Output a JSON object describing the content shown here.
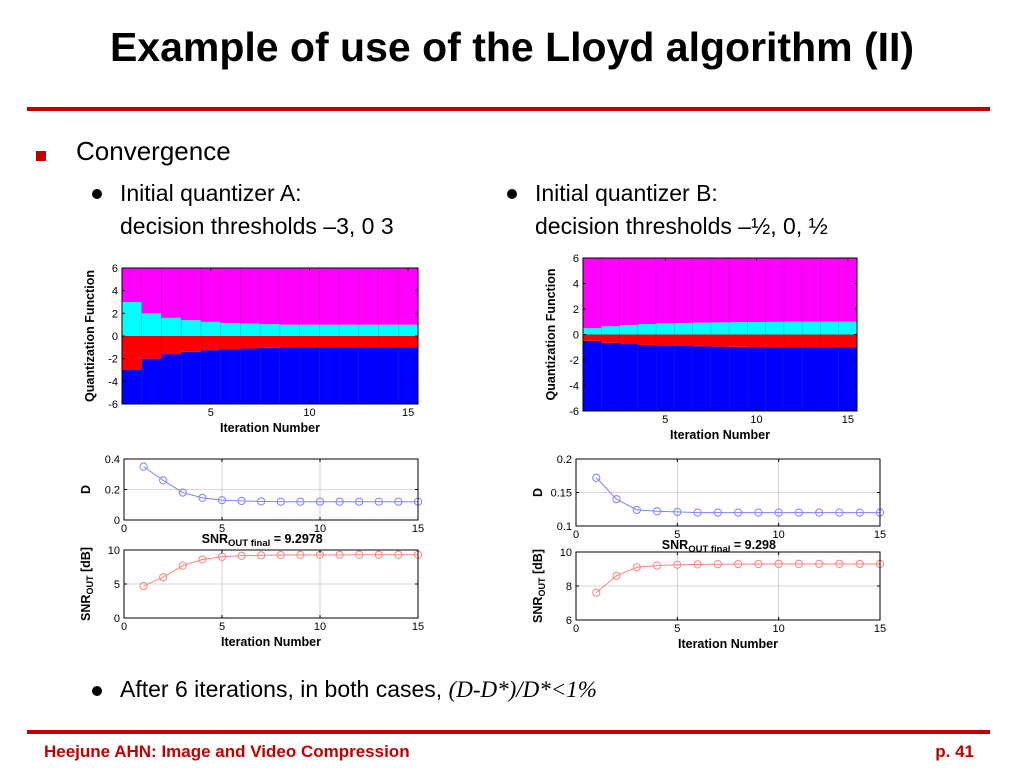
{
  "slide": {
    "title": "Example of use of the Lloyd algorithm (II)",
    "bullet1": "Convergence",
    "caseA": {
      "line1": "Initial quantizer A:",
      "line2": "decision thresholds –3, 0 3"
    },
    "caseB": {
      "line1": "Initial quantizer B:",
      "line2": "decision thresholds –½, 0, ½"
    },
    "bullet3_text": "After 6 iterations, in both cases,",
    "bullet3_formula": "(D-D*)/D*<1%",
    "footer_left": "Heejune AHN: Image and Video Compression",
    "footer_right": "p. 41"
  },
  "colors": {
    "accent": "#c00000",
    "magenta": "#ff00ff",
    "cyan": "#00ffff",
    "red": "#ff0000",
    "blue": "#0000ff",
    "d_curve": "#8080ff",
    "snr_curve": "#ff8080"
  },
  "chart_data": [
    {
      "id": "quantA",
      "type": "area",
      "title": "",
      "xlabel": "Iteration Number",
      "ylabel": "Quantization Function",
      "xlim": [
        0.5,
        15.5
      ],
      "ylim": [
        -6,
        6
      ],
      "xticks": [
        5,
        10,
        15
      ],
      "yticks": [
        6,
        4,
        2,
        0,
        -2,
        -4,
        -6
      ],
      "x": [
        1,
        2,
        3,
        4,
        5,
        6,
        7,
        8,
        9,
        10,
        11,
        12,
        13,
        14,
        15
      ],
      "bands": [
        {
          "name": "",
          "color": "#0000ff",
          "lower": [
            -6,
            -6,
            -6,
            -6,
            -6,
            -6,
            -6,
            -6,
            -6,
            -6,
            -6,
            -6,
            -6,
            -6,
            -6
          ],
          "upper": [
            -3.0,
            -2.0,
            -1.6,
            -1.4,
            -1.25,
            -1.15,
            -1.1,
            -1.05,
            -1.0,
            -1.0,
            -1.0,
            -1.0,
            -1.0,
            -1.0,
            -1.0
          ]
        },
        {
          "name": "",
          "color": "#ff0000",
          "lower": [
            -3.0,
            -2.0,
            -1.6,
            -1.4,
            -1.25,
            -1.15,
            -1.1,
            -1.05,
            -1.0,
            -1.0,
            -1.0,
            -1.0,
            -1.0,
            -1.0,
            -1.0
          ],
          "upper": [
            0,
            0,
            0,
            0,
            0,
            0,
            0,
            0,
            0,
            0,
            0,
            0,
            0,
            0,
            0
          ]
        },
        {
          "name": "",
          "color": "#00ffff",
          "lower": [
            0,
            0,
            0,
            0,
            0,
            0,
            0,
            0,
            0,
            0,
            0,
            0,
            0,
            0,
            0
          ],
          "upper": [
            3.0,
            2.0,
            1.6,
            1.4,
            1.25,
            1.15,
            1.1,
            1.05,
            1.0,
            1.0,
            1.0,
            1.0,
            1.0,
            1.0,
            1.0
          ]
        },
        {
          "name": "",
          "color": "#ff00ff",
          "lower": [
            3.0,
            2.0,
            1.6,
            1.4,
            1.25,
            1.15,
            1.1,
            1.05,
            1.0,
            1.0,
            1.0,
            1.0,
            1.0,
            1.0,
            1.0
          ],
          "upper": [
            6,
            6,
            6,
            6,
            6,
            6,
            6,
            6,
            6,
            6,
            6,
            6,
            6,
            6,
            6
          ]
        }
      ]
    },
    {
      "id": "quantB",
      "type": "area",
      "title": "",
      "xlabel": "Iteration Number",
      "ylabel": "Quantization Function",
      "xlim": [
        0.5,
        15.5
      ],
      "ylim": [
        -6,
        6
      ],
      "xticks": [
        5,
        10,
        15
      ],
      "yticks": [
        6,
        4,
        2,
        0,
        -2,
        -4,
        -6
      ],
      "x": [
        1,
        2,
        3,
        4,
        5,
        6,
        7,
        8,
        9,
        10,
        11,
        12,
        13,
        14,
        15
      ],
      "bands": [
        {
          "name": "",
          "color": "#0000ff",
          "lower": [
            -6,
            -6,
            -6,
            -6,
            -6,
            -6,
            -6,
            -6,
            -6,
            -6,
            -6,
            -6,
            -6,
            -6,
            -6
          ],
          "upper": [
            -0.5,
            -0.65,
            -0.75,
            -0.82,
            -0.87,
            -0.9,
            -0.93,
            -0.95,
            -0.97,
            -0.98,
            -0.99,
            -1.0,
            -1.0,
            -1.0,
            -1.0
          ]
        },
        {
          "name": "",
          "color": "#ff0000",
          "lower": [
            -0.5,
            -0.65,
            -0.75,
            -0.82,
            -0.87,
            -0.9,
            -0.93,
            -0.95,
            -0.97,
            -0.98,
            -0.99,
            -1.0,
            -1.0,
            -1.0,
            -1.0
          ],
          "upper": [
            0,
            0,
            0,
            0,
            0,
            0,
            0,
            0,
            0,
            0,
            0,
            0,
            0,
            0,
            0
          ]
        },
        {
          "name": "",
          "color": "#00ffff",
          "lower": [
            0,
            0,
            0,
            0,
            0,
            0,
            0,
            0,
            0,
            0,
            0,
            0,
            0,
            0,
            0
          ],
          "upper": [
            0.5,
            0.65,
            0.75,
            0.82,
            0.87,
            0.9,
            0.93,
            0.95,
            0.97,
            0.98,
            0.99,
            1.0,
            1.0,
            1.0,
            1.0
          ]
        },
        {
          "name": "",
          "color": "#ff00ff",
          "lower": [
            0.5,
            0.65,
            0.75,
            0.82,
            0.87,
            0.9,
            0.93,
            0.95,
            0.97,
            0.98,
            0.99,
            1.0,
            1.0,
            1.0,
            1.0
          ],
          "upper": [
            6,
            6,
            6,
            6,
            6,
            6,
            6,
            6,
            6,
            6,
            6,
            6,
            6,
            6,
            6
          ]
        }
      ]
    },
    {
      "id": "distA",
      "type": "line",
      "title": "",
      "xlabel": "",
      "ylabel": "D",
      "xlim": [
        0,
        15
      ],
      "ylim": [
        0,
        0.4
      ],
      "xticks": [
        0,
        5,
        10,
        15
      ],
      "yticks": [
        0,
        0.2,
        0.4
      ],
      "grid": true,
      "annotation": {
        "text": "SNR",
        "sub": "OUT final",
        "value": " = 9.2978"
      },
      "series": [
        {
          "name": "",
          "color": "#8080ff",
          "x": [
            1,
            2,
            3,
            4,
            5,
            6,
            7,
            8,
            9,
            10,
            11,
            12,
            13,
            14,
            15
          ],
          "y": [
            0.35,
            0.26,
            0.18,
            0.145,
            0.13,
            0.125,
            0.122,
            0.12,
            0.12,
            0.12,
            0.12,
            0.12,
            0.12,
            0.12,
            0.12
          ]
        }
      ]
    },
    {
      "id": "snrA",
      "type": "line",
      "title": "",
      "xlabel": "Iteration Number",
      "ylabel": "SNR",
      "ylabel_sub": "OUT",
      "ylabel_suffix": " [dB]",
      "xlim": [
        0,
        15
      ],
      "ylim": [
        0,
        10
      ],
      "xticks": [
        0,
        5,
        10,
        15
      ],
      "yticks": [
        0,
        5,
        10
      ],
      "grid": true,
      "series": [
        {
          "name": "",
          "color": "#ff8080",
          "x": [
            1,
            2,
            3,
            4,
            5,
            6,
            7,
            8,
            9,
            10,
            11,
            12,
            13,
            14,
            15
          ],
          "y": [
            4.7,
            6.0,
            7.7,
            8.6,
            9.0,
            9.15,
            9.22,
            9.26,
            9.28,
            9.29,
            9.29,
            9.3,
            9.3,
            9.3,
            9.3
          ]
        }
      ]
    },
    {
      "id": "distB",
      "type": "line",
      "title": "",
      "xlabel": "",
      "ylabel": "D",
      "xlim": [
        0,
        15
      ],
      "ylim": [
        0.1,
        0.2
      ],
      "xticks": [
        0,
        5,
        10,
        15
      ],
      "yticks": [
        0.1,
        0.15,
        0.2
      ],
      "grid": true,
      "annotation": {
        "text": "SNR",
        "sub": "OUT final",
        "value": " = 9.298"
      },
      "series": [
        {
          "name": "",
          "color": "#8080ff",
          "x": [
            1,
            2,
            3,
            4,
            5,
            6,
            7,
            8,
            9,
            10,
            11,
            12,
            13,
            14,
            15
          ],
          "y": [
            0.172,
            0.14,
            0.124,
            0.122,
            0.121,
            0.12,
            0.12,
            0.12,
            0.12,
            0.12,
            0.12,
            0.12,
            0.12,
            0.12,
            0.12
          ]
        }
      ]
    },
    {
      "id": "snrB",
      "type": "line",
      "title": "",
      "xlabel": "Iteration Number",
      "ylabel": "SNR",
      "ylabel_sub": "OUT",
      "ylabel_suffix": " [dB]",
      "xlim": [
        0,
        15
      ],
      "ylim": [
        6,
        10
      ],
      "xticks": [
        0,
        5,
        10,
        15
      ],
      "yticks": [
        6,
        8,
        10
      ],
      "grid": true,
      "series": [
        {
          "name": "",
          "color": "#ff8080",
          "x": [
            1,
            2,
            3,
            4,
            5,
            6,
            7,
            8,
            9,
            10,
            11,
            12,
            13,
            14,
            15
          ],
          "y": [
            7.6,
            8.6,
            9.1,
            9.2,
            9.25,
            9.27,
            9.28,
            9.29,
            9.29,
            9.3,
            9.3,
            9.3,
            9.3,
            9.3,
            9.3
          ]
        }
      ]
    }
  ]
}
